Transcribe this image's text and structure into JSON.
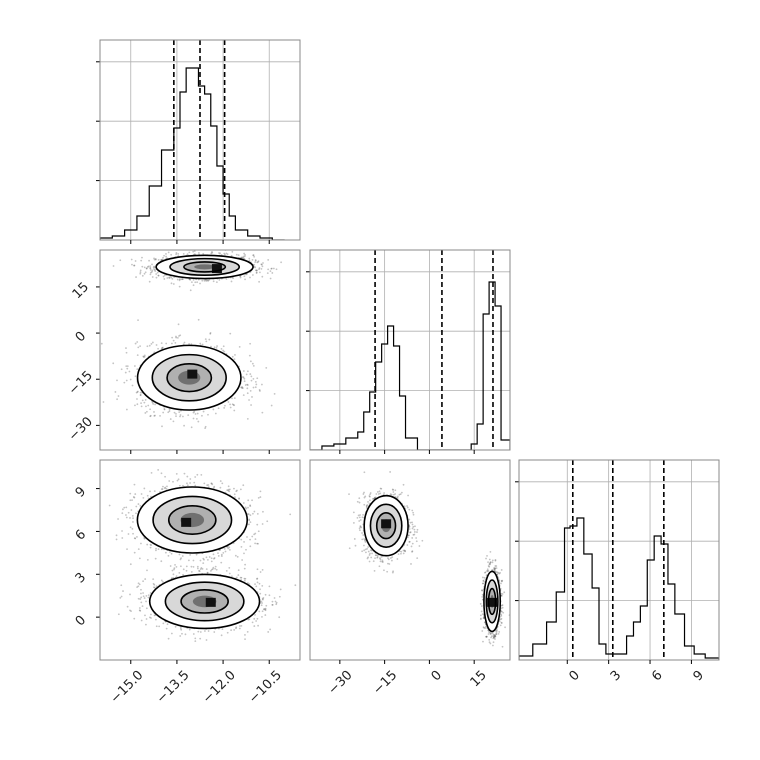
{
  "chart_data": {
    "type": "corner",
    "description_parameters": 3,
    "panels": [
      {
        "id": "hist_p0",
        "type": "histogram",
        "row": 0,
        "col": 0,
        "xlim": [
          -16.0,
          -9.5
        ],
        "ylim": [
          0,
          1.0
        ],
        "bin_edges": [
          -16.0,
          -15.6,
          -15.2,
          -14.8,
          -14.4,
          -14.0,
          -13.6,
          -13.4,
          -13.2,
          -13.0,
          -12.8,
          -12.6,
          -12.4,
          -12.2,
          -12.0,
          -11.8,
          -11.6,
          -11.2,
          -10.8,
          -10.4,
          -10.0
        ],
        "counts": [
          0.01,
          0.02,
          0.05,
          0.12,
          0.27,
          0.45,
          0.56,
          0.74,
          0.86,
          0.86,
          0.77,
          0.73,
          0.57,
          0.37,
          0.23,
          0.12,
          0.05,
          0.02,
          0.01,
          0.0
        ],
        "quantiles": [
          -13.6,
          -12.75,
          -11.95
        ],
        "grid": true,
        "show_x_ticklabels": false,
        "show_y_ticklabels": false
      },
      {
        "id": "hist_p1",
        "type": "histogram",
        "row": 1,
        "col": 1,
        "xlim": [
          -40,
          27
        ],
        "ylim": [
          0,
          1.0
        ],
        "bin_edges": [
          -40,
          -36,
          -32,
          -28,
          -24,
          -22,
          -20,
          -18,
          -16,
          -14,
          -12,
          -10,
          -8,
          -4,
          0,
          4,
          8,
          12,
          14,
          16,
          18,
          20,
          22,
          24,
          27
        ],
        "counts": [
          0.0,
          0.02,
          0.03,
          0.06,
          0.09,
          0.19,
          0.29,
          0.44,
          0.53,
          0.62,
          0.52,
          0.27,
          0.06,
          0.0,
          0.0,
          0.0,
          0.0,
          0.0,
          0.03,
          0.13,
          0.68,
          0.84,
          0.72,
          0.05
        ],
        "quantiles": [
          -18.2,
          4.2,
          21.3
        ],
        "grid": true,
        "show_x_ticklabels": false,
        "show_y_ticklabels": false
      },
      {
        "id": "hist_p2",
        "type": "histogram",
        "row": 2,
        "col": 2,
        "xlim": [
          -3.5,
          11
        ],
        "ylim": [
          0,
          1.0
        ],
        "bin_edges": [
          -3.5,
          -2.5,
          -1.5,
          -0.8,
          -0.2,
          0.2,
          0.7,
          1.2,
          1.8,
          2.3,
          2.8,
          3.5,
          4.3,
          4.8,
          5.3,
          5.8,
          6.3,
          6.8,
          7.3,
          7.8,
          8.5,
          9.2,
          10,
          11
        ],
        "counts": [
          0.02,
          0.08,
          0.19,
          0.34,
          0.66,
          0.67,
          0.71,
          0.53,
          0.36,
          0.08,
          0.03,
          0.03,
          0.12,
          0.19,
          0.27,
          0.5,
          0.62,
          0.58,
          0.38,
          0.23,
          0.07,
          0.03,
          0.01
        ],
        "quantiles": [
          0.4,
          3.3,
          7.0
        ],
        "grid": true,
        "show_x_ticklabels": true,
        "show_y_ticklabels": false
      },
      {
        "id": "scatter_p0_p1",
        "type": "density2d",
        "row": 1,
        "col": 0,
        "xlim": [
          -16.0,
          -9.5
        ],
        "ylim": [
          -38,
          27
        ],
        "modes": [
          {
            "cx": -12.6,
            "cy": 21.5,
            "sx": 0.75,
            "sy": 1.8,
            "n": 1600,
            "peak": [
              -12.2,
              20.8
            ]
          },
          {
            "cx": -13.1,
            "cy": -14.5,
            "sx": 0.8,
            "sy": 5.0,
            "n": 1600,
            "peak": [
              -13.0,
              -13.5
            ]
          }
        ]
      },
      {
        "id": "scatter_p0_p2",
        "type": "density2d",
        "row": 2,
        "col": 0,
        "xlim": [
          -16.0,
          -9.5
        ],
        "ylim": [
          -3,
          11
        ],
        "modes": [
          {
            "cx": -13.0,
            "cy": 6.8,
            "sx": 0.85,
            "sy": 1.1,
            "n": 1600,
            "peak": [
              -13.2,
              6.6
            ]
          },
          {
            "cx": -12.6,
            "cy": 1.1,
            "sx": 0.85,
            "sy": 0.9,
            "n": 1600,
            "peak": [
              -12.4,
              1.0
            ]
          }
        ]
      },
      {
        "id": "scatter_p1_p2",
        "type": "density2d",
        "row": 2,
        "col": 1,
        "xlim": [
          -40,
          27
        ],
        "ylim": [
          -3,
          11
        ],
        "modes": [
          {
            "cx": -14.5,
            "cy": 6.4,
            "sx": 3.5,
            "sy": 1.0,
            "n": 1600,
            "peak": [
              -14.5,
              6.5
            ]
          },
          {
            "cx": 21.0,
            "cy": 1.1,
            "sx": 1.3,
            "sy": 1.0,
            "n": 1400,
            "peak": [
              21.0,
              1.0
            ]
          }
        ]
      }
    ],
    "axes": [
      {
        "param": 0,
        "ticks": [
          -15.0,
          -13.5,
          -12.0,
          -10.5
        ],
        "tick_labels": [
          "−15.0",
          "−13.5",
          "−12.0",
          "−10.5"
        ]
      },
      {
        "param": 1,
        "ticks": [
          -30,
          -15,
          0,
          15
        ],
        "tick_labels": [
          "−30",
          "−15",
          "0",
          "15"
        ]
      },
      {
        "param": 2,
        "ticks": [
          0,
          3,
          6,
          9
        ],
        "tick_labels": [
          "0",
          "3",
          "6",
          "9"
        ]
      }
    ],
    "hist_grid_yfractions": [
      0.3,
      0.6,
      0.9
    ],
    "colors": {
      "line": "#000000",
      "points": "#555555",
      "grid": "#b0b0b0",
      "frame": "#888888"
    }
  }
}
